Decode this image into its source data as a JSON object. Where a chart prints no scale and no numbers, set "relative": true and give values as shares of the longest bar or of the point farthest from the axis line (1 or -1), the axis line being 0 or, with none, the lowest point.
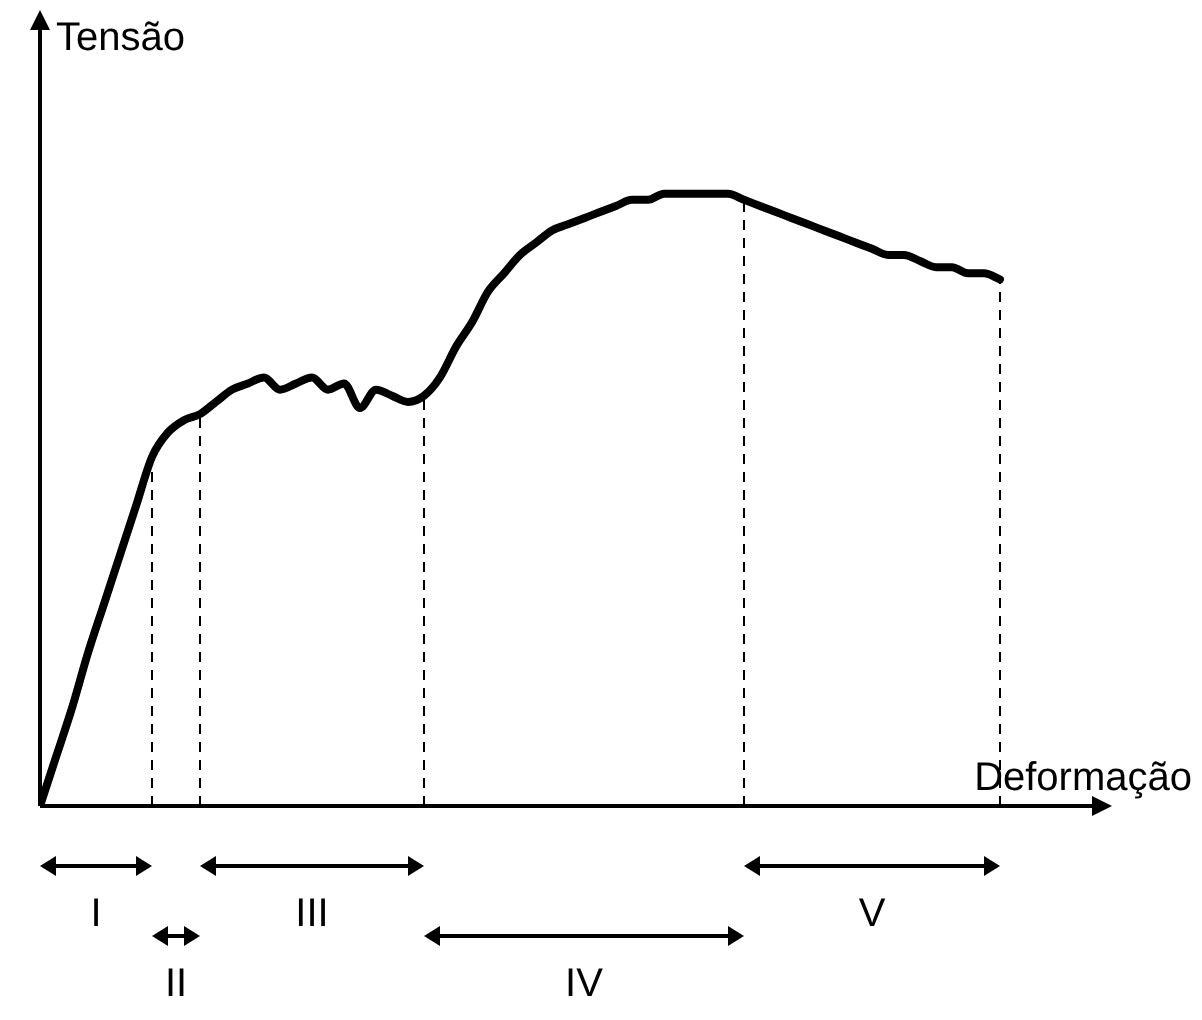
{
  "chart_data": {
    "type": "line",
    "relative": true,
    "xlabel": "Deformação",
    "ylabel": "Tensão",
    "legend": false,
    "marker": "none",
    "line_style": "solid",
    "categories": [
      null,
      null,
      null,
      null,
      null,
      null,
      null,
      null,
      null,
      null,
      null,
      null,
      null,
      null,
      null,
      null,
      null,
      null,
      null,
      null,
      null,
      null,
      null,
      null,
      null,
      null,
      null,
      null,
      null,
      null,
      null,
      null,
      null,
      null,
      null,
      null,
      null,
      null,
      null,
      null,
      null,
      null,
      null,
      null,
      null,
      null,
      null,
      null,
      null,
      null,
      null,
      null,
      null,
      null,
      null,
      null,
      null,
      null,
      null,
      null,
      null
    ],
    "series": [
      {
        "color": "#000000",
        "values": [
          0,
          0.08,
          0.16,
          0.25,
          0.33,
          0.41,
          0.49,
          0.57,
          0.61,
          0.63,
          0.64,
          0.66,
          0.68,
          0.69,
          0.7,
          0.68,
          0.69,
          0.7,
          0.68,
          0.69,
          0.65,
          0.68,
          0.67,
          0.66,
          0.67,
          0.7,
          0.75,
          0.79,
          0.84,
          0.87,
          0.9,
          0.92,
          0.94,
          0.95,
          0.96,
          0.97,
          0.98,
          0.99,
          0.99,
          1,
          1,
          1,
          1,
          1,
          0.99,
          0.98,
          0.97,
          0.96,
          0.95,
          0.94,
          0.93,
          0.92,
          0.91,
          0.9,
          0.9,
          0.89,
          0.88,
          0.88,
          0.87,
          0.87,
          0.86
        ]
      }
    ],
    "annotations": [
      "I",
      "II",
      "III",
      "IV",
      "V"
    ]
  }
}
